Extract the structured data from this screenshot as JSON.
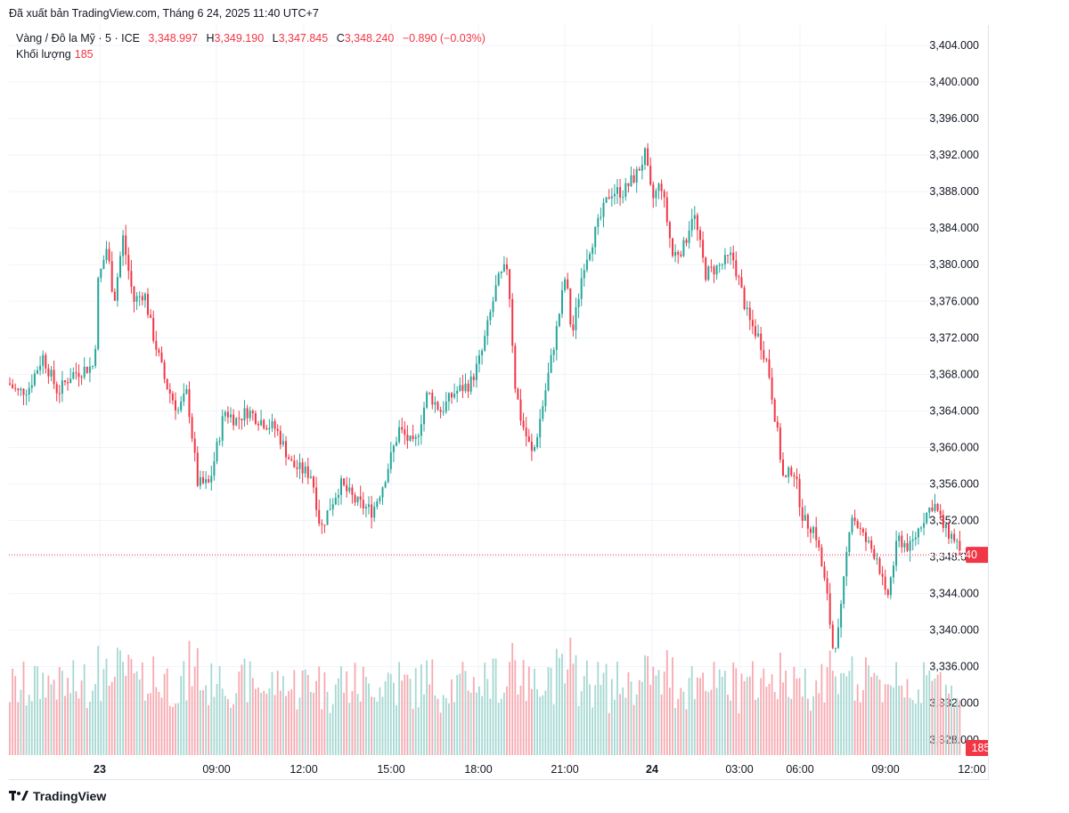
{
  "published": "Đã xuất bản TradingView.com, Tháng 6 24, 2025 11:40 UTC+7",
  "legend": {
    "symbol": "Vàng / Đô la Mỹ · 5 · ICE",
    "open": "3,348.997",
    "high": "3,349.190",
    "low": "3,347.845",
    "close": "3,348.240",
    "change": "−0.890 (−0.03%)",
    "open_label": "",
    "high_label": "H",
    "low_label": "L",
    "close_label": "C"
  },
  "volume": {
    "label": "Khối lượng",
    "value": "185"
  },
  "brand": "TradingView",
  "colors": {
    "up": "#26a69a",
    "down": "#f23645",
    "up_vol": "#a6d8d2",
    "down_vol": "#f7a9b0",
    "grid": "#f0f3fa",
    "text": "#131722"
  },
  "chart_data": {
    "type": "candlestick",
    "symbol": "Vàng / Đô la Mỹ",
    "interval": "5",
    "y_ticks": [
      "3,404.000",
      "3,400.000",
      "3,396.000",
      "3,392.000",
      "3,388.000",
      "3,384.000",
      "3,380.000",
      "3,376.000",
      "3,372.000",
      "3,368.000",
      "3,364.000",
      "3,360.000",
      "3,356.000",
      "3,352.000",
      "3,348.000",
      "3,344.000",
      "3,340.000",
      "3,336.000",
      "3,332.000",
      "3,328.000"
    ],
    "x_ticks": [
      "23",
      "09:00",
      "12:00",
      "15:00",
      "18:00",
      "21:00",
      "24",
      "03:00",
      "06:00",
      "09:00",
      "12:00"
    ],
    "ylim": [
      3326,
      3406
    ],
    "last_price": 3348.24,
    "last_price_label": "3,348.240",
    "volume_label": "185",
    "path": [
      [
        0,
        3367
      ],
      [
        10,
        3366
      ],
      [
        22,
        3366.5
      ],
      [
        38,
        3370
      ],
      [
        55,
        3366
      ],
      [
        70,
        3368
      ],
      [
        96,
        3369
      ],
      [
        100,
        3378
      ],
      [
        110,
        3382
      ],
      [
        118,
        3376
      ],
      [
        128,
        3383
      ],
      [
        140,
        3376
      ],
      [
        152,
        3377
      ],
      [
        160,
        3373
      ],
      [
        176,
        3367
      ],
      [
        190,
        3364
      ],
      [
        200,
        3366
      ],
      [
        212,
        3356
      ],
      [
        225,
        3356
      ],
      [
        242,
        3364
      ],
      [
        255,
        3363
      ],
      [
        268,
        3364
      ],
      [
        282,
        3363
      ],
      [
        300,
        3362
      ],
      [
        318,
        3358
      ],
      [
        340,
        3357
      ],
      [
        350,
        3351
      ],
      [
        358,
        3353
      ],
      [
        372,
        3356
      ],
      [
        390,
        3354
      ],
      [
        408,
        3353
      ],
      [
        420,
        3356
      ],
      [
        438,
        3362
      ],
      [
        455,
        3360
      ],
      [
        470,
        3366
      ],
      [
        485,
        3364
      ],
      [
        500,
        3366
      ],
      [
        518,
        3367
      ],
      [
        530,
        3370
      ],
      [
        548,
        3378
      ],
      [
        560,
        3380
      ],
      [
        568,
        3367
      ],
      [
        575,
        3363
      ],
      [
        588,
        3359
      ],
      [
        600,
        3365
      ],
      [
        615,
        3373
      ],
      [
        625,
        3379
      ],
      [
        632,
        3372
      ],
      [
        645,
        3380
      ],
      [
        660,
        3384
      ],
      [
        675,
        3388
      ],
      [
        690,
        3388
      ],
      [
        705,
        3390
      ],
      [
        714,
        3392
      ],
      [
        722,
        3387
      ],
      [
        732,
        3389
      ],
      [
        745,
        3381
      ],
      [
        758,
        3382
      ],
      [
        768,
        3386
      ],
      [
        782,
        3379
      ],
      [
        800,
        3380
      ],
      [
        812,
        3381
      ],
      [
        820,
        3378
      ],
      [
        830,
        3374
      ],
      [
        842,
        3372
      ],
      [
        852,
        3369
      ],
      [
        862,
        3362
      ],
      [
        870,
        3356
      ],
      [
        880,
        3358
      ],
      [
        892,
        3352
      ],
      [
        905,
        3351
      ],
      [
        918,
        3344
      ],
      [
        925,
        3338
      ],
      [
        932,
        3340
      ],
      [
        945,
        3353
      ],
      [
        960,
        3350
      ],
      [
        975,
        3348
      ],
      [
        985,
        3343
      ],
      [
        998,
        3350
      ],
      [
        1012,
        3349
      ],
      [
        1025,
        3352
      ],
      [
        1038,
        3354
      ],
      [
        1050,
        3351
      ],
      [
        1062,
        3350
      ],
      [
        1071,
        3348.24
      ]
    ]
  }
}
